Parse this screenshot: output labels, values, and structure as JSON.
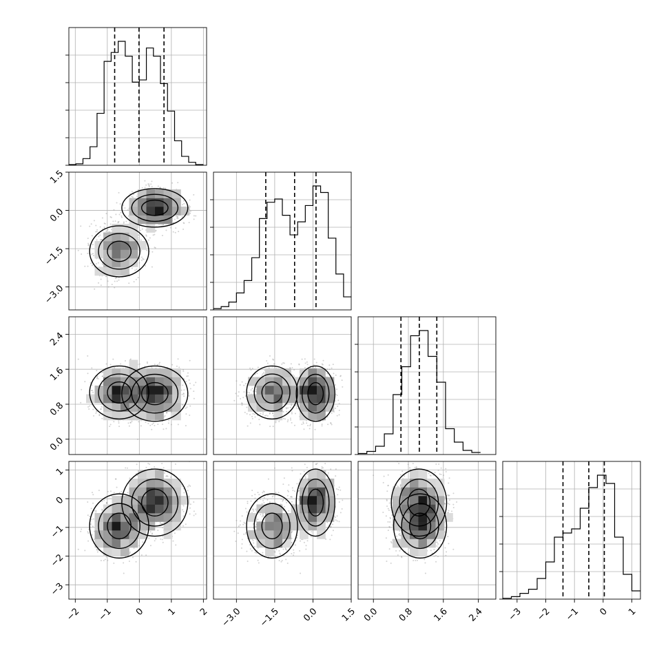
{
  "chart_data": {
    "type": "corner",
    "grid": true,
    "colors": {
      "line": "#000000",
      "grid": "#b0b0b0",
      "points": "#9a9a9a"
    },
    "parameters": [
      {
        "range": [
          -2.2,
          2.1
        ],
        "ticks": [
          -2,
          -1,
          0,
          1,
          2
        ],
        "tick_labels": [
          "−2",
          "−1",
          "0",
          "1",
          "2"
        ]
      },
      {
        "range": [
          -3.9,
          1.5
        ],
        "ticks": [
          -3.0,
          -1.5,
          0.0,
          1.5
        ],
        "tick_labels": [
          "−3.0",
          "−1.5",
          "0.0",
          "1.5"
        ]
      },
      {
        "range": [
          -0.35,
          2.8
        ],
        "ticks": [
          0.0,
          0.8,
          1.6,
          2.4
        ],
        "tick_labels": [
          "0.0",
          "0.8",
          "1.6",
          "2.4"
        ]
      },
      {
        "range": [
          -3.5,
          1.3
        ],
        "ticks": [
          -3,
          -2,
          -1,
          0,
          1
        ],
        "tick_labels": [
          "−3",
          "−2",
          "−1",
          "0",
          "1"
        ]
      }
    ],
    "quantiles": [
      [
        -0.77,
        -0.01,
        0.77
      ],
      [
        -1.85,
        -0.72,
        0.12
      ],
      [
        0.63,
        1.05,
        1.45
      ],
      [
        -1.4,
        -0.5,
        0.04
      ]
    ],
    "histograms": [
      {
        "edges": [
          -2.2,
          -1.98,
          -1.76,
          -1.54,
          -1.32,
          -1.1,
          -0.88,
          -0.66,
          -0.44,
          -0.22,
          0.0,
          0.22,
          0.44,
          0.66,
          0.88,
          1.1,
          1.32,
          1.54,
          1.76,
          2.0
        ],
        "counts": [
          1,
          2,
          9,
          25,
          70,
          140,
          152,
          167,
          147,
          112,
          115,
          158,
          147,
          110,
          73,
          33,
          12,
          4,
          1
        ]
      },
      {
        "edges": [
          -3.9,
          -3.6,
          -3.3,
          -3.0,
          -2.7,
          -2.4,
          -2.1,
          -1.8,
          -1.5,
          -1.2,
          -0.9,
          -0.6,
          -0.3,
          0.0,
          0.3,
          0.6,
          0.9,
          1.2,
          1.5
        ],
        "counts": [
          2,
          5,
          12,
          26,
          45,
          80,
          140,
          165,
          170,
          145,
          115,
          135,
          160,
          190,
          180,
          110,
          55,
          20
        ]
      },
      {
        "edges": [
          -0.35,
          -0.15,
          0.05,
          0.25,
          0.45,
          0.65,
          0.85,
          1.05,
          1.25,
          1.45,
          1.65,
          1.85,
          2.05,
          2.25,
          2.45
        ],
        "counts": [
          1,
          3,
          8,
          20,
          58,
          85,
          115,
          120,
          95,
          70,
          25,
          12,
          4,
          2
        ]
      },
      {
        "edges": [
          -3.5,
          -3.2,
          -2.9,
          -2.6,
          -2.3,
          -2.0,
          -1.7,
          -1.4,
          -1.1,
          -0.8,
          -0.5,
          -0.2,
          0.1,
          0.4,
          0.7,
          1.0,
          1.3
        ],
        "counts": [
          1,
          3,
          7,
          12,
          25,
          45,
          75,
          80,
          85,
          110,
          135,
          150,
          140,
          75,
          30,
          10
        ]
      }
    ],
    "distributions": {
      "p0": {
        "type": "mixture",
        "components": [
          {
            "weight": 0.5,
            "mean": -0.65,
            "sd": 0.42
          },
          {
            "weight": 0.5,
            "mean": 0.55,
            "sd": 0.42
          }
        ]
      },
      "p2": {
        "type": "normal",
        "mean": 1.05,
        "sd": 0.32
      },
      "p3": {
        "type": "normal",
        "mean": -0.5,
        "sd": 0.7
      },
      "p1_given_p0": {
        "type": "mixture",
        "components": [
          {
            "p0_mean": -0.65,
            "p0_sd": 0.42,
            "mean": -1.55,
            "sd": 0.55
          },
          {
            "p0_mean": 0.55,
            "p0_sd": 0.42,
            "mean": 0.1,
            "sd": 0.38
          }
        ]
      }
    },
    "scatter_points_per_panel": 1400
  }
}
